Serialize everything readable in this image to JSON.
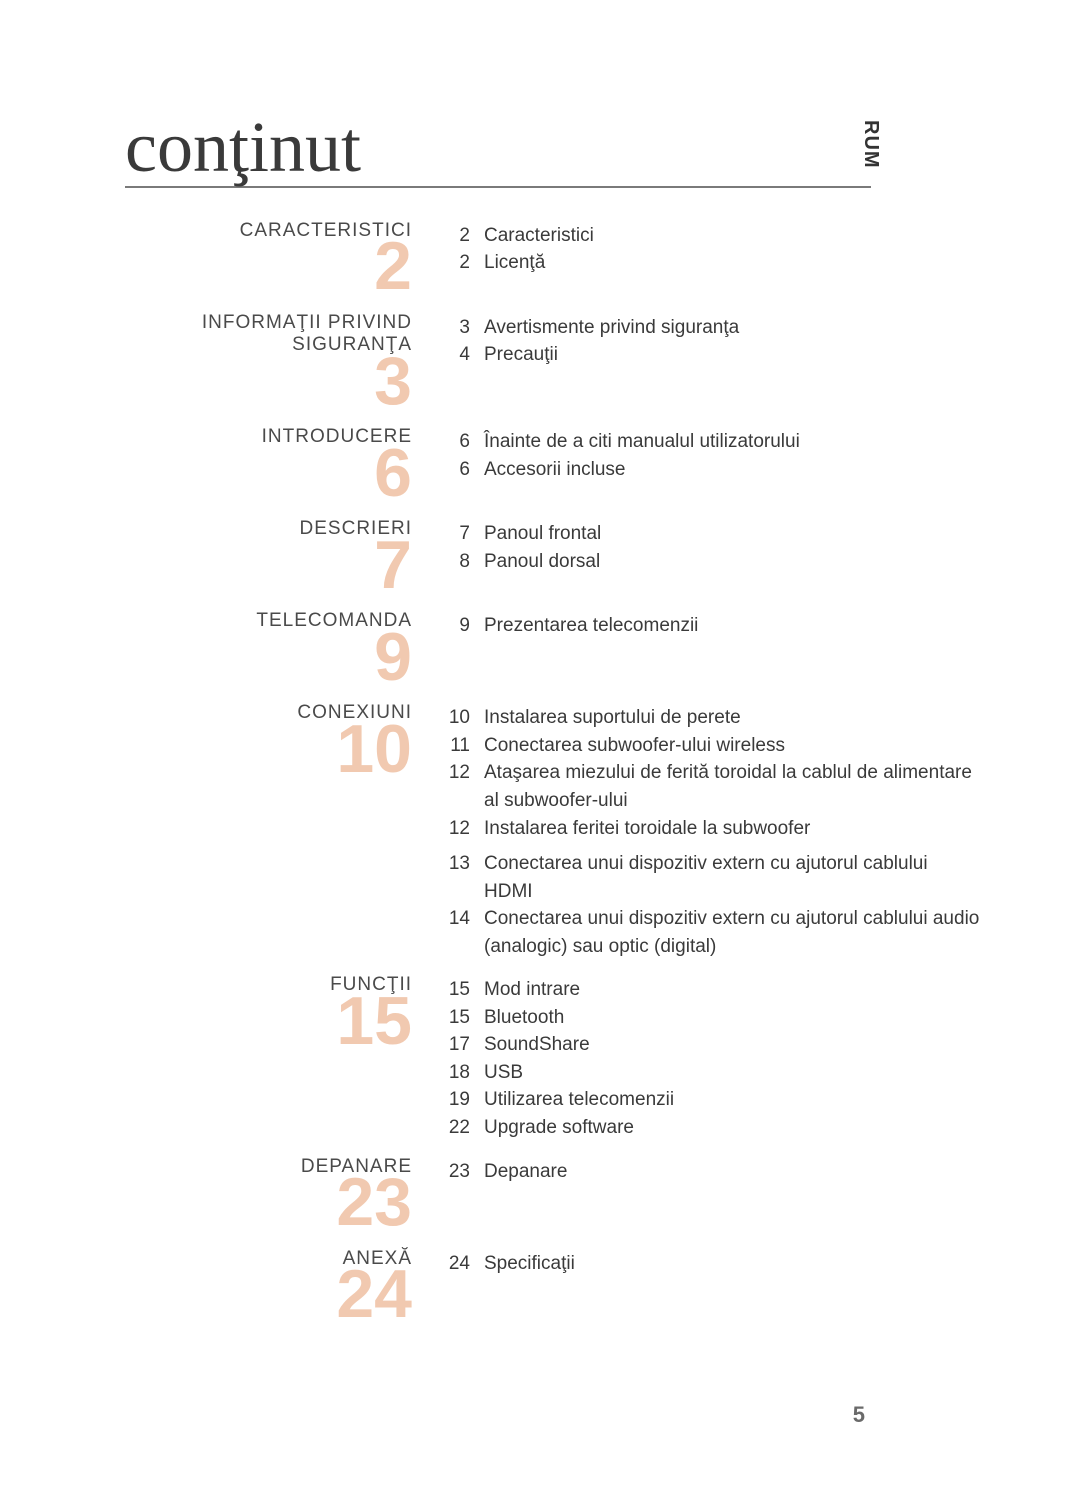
{
  "title": "conţinut",
  "side_tab": "RUM",
  "page_number": "5",
  "accent_color": "#d9661f",
  "accent_opacity": 0.35,
  "title_fontsize": 72,
  "bignum_fontsize": 68,
  "body_fontsize": 19,
  "sections": [
    {
      "heading": "CARACTERISTICI",
      "number": "2",
      "entries": [
        {
          "page": "2",
          "text": "Caracteristici"
        },
        {
          "page": "2",
          "text": "Licenţă"
        }
      ]
    },
    {
      "heading": "INFORMAŢII PRIVIND SIGURANŢA",
      "number": "3",
      "entries": [
        {
          "page": "3",
          "text": "Avertismente privind siguranţa"
        },
        {
          "page": "4",
          "text": "Precauţii"
        }
      ]
    },
    {
      "heading": "INTRODUCERE",
      "number": "6",
      "entries": [
        {
          "page": "6",
          "text": "Înainte de a citi manualul utilizatorului"
        },
        {
          "page": "6",
          "text": "Accesorii incluse"
        }
      ]
    },
    {
      "heading": "DESCRIERI",
      "number": "7",
      "entries": [
        {
          "page": "7",
          "text": "Panoul frontal"
        },
        {
          "page": "8",
          "text": "Panoul dorsal"
        }
      ]
    },
    {
      "heading": "TELECOMANDA",
      "number": "9",
      "entries": [
        {
          "page": "9",
          "text": "Prezentarea telecomenzii"
        }
      ]
    },
    {
      "heading": "CONEXIUNI",
      "number": "10",
      "entries": [
        {
          "page": "10",
          "text": "Instalarea suportului de perete"
        },
        {
          "page": "11",
          "text": "Conectarea subwoofer-ului wireless"
        },
        {
          "page": "12",
          "text": "Ataşarea miezului de ferită toroidal la cablul de alimentare al subwoofer-ului"
        },
        {
          "page": "12",
          "text": "Instalarea feritei toroidale la subwoofer"
        },
        {
          "page": "13",
          "text": "Conectarea unui dispozitiv extern cu ajutorul cablului HDMI"
        },
        {
          "page": "14",
          "text": "Conectarea unui dispozitiv extern cu ajutorul cablului audio (analogic) sau optic (digital)"
        }
      ],
      "gap_after": [
        3
      ]
    },
    {
      "heading": "FUNCŢII",
      "number": "15",
      "entries": [
        {
          "page": "15",
          "text": "Mod intrare"
        },
        {
          "page": "15",
          "text": "Bluetooth"
        },
        {
          "page": "17",
          "text": "SoundShare"
        },
        {
          "page": "18",
          "text": "USB"
        },
        {
          "page": "19",
          "text": "Utilizarea telecomenzii"
        },
        {
          "page": "22",
          "text": "Upgrade software"
        }
      ]
    },
    {
      "heading": "DEPANARE",
      "number": "23",
      "entries": [
        {
          "page": "23",
          "text": "Depanare"
        }
      ]
    },
    {
      "heading": "ANEXĂ",
      "number": "24",
      "entries": [
        {
          "page": "24",
          "text": "Specificaţii"
        }
      ]
    }
  ]
}
